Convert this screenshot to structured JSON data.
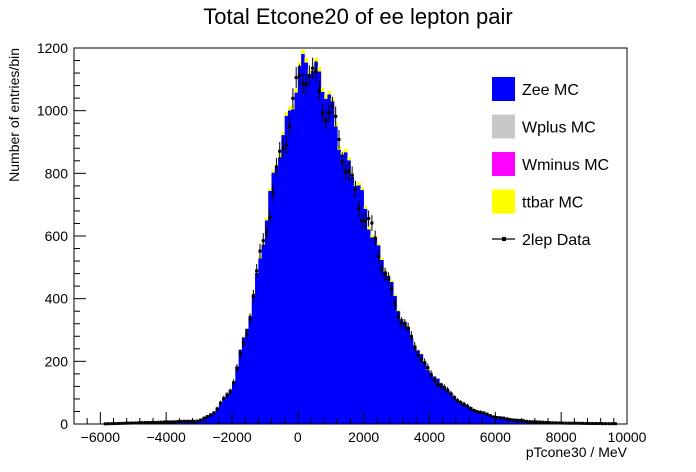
{
  "chart_data": {
    "type": "bar",
    "title": "Total Etcone20 of ee lepton pair",
    "xlabel": "pTcone30 / MeV",
    "ylabel": "Number of entries/bin",
    "xlim": [
      -6800,
      10000
    ],
    "ylim": [
      0,
      1200
    ],
    "x_ticks": [
      -6000,
      -4000,
      -2000,
      0,
      2000,
      4000,
      6000,
      8000,
      10000
    ],
    "y_ticks": [
      0,
      200,
      400,
      600,
      800,
      1000,
      1200
    ],
    "x_tick_labels": [
      "−6000",
      "−4000",
      "−2000",
      "0",
      "2000",
      "4000",
      "6000",
      "8000",
      "10000"
    ],
    "y_tick_labels": [
      "0",
      "200",
      "400",
      "600",
      "800",
      "1000",
      "1200"
    ],
    "bin_width": 100,
    "legend": {
      "position": "top-right",
      "entries": [
        {
          "name": "Zee MC",
          "marker": "box",
          "color": "#0000ff"
        },
        {
          "name": "Wplus MC",
          "marker": "box",
          "color": "#c8c8c8"
        },
        {
          "name": "Wminus MC",
          "marker": "box",
          "color": "#ff00ff"
        },
        {
          "name": "ttbar MC",
          "marker": "box",
          "color": "#ffff00"
        },
        {
          "name": "2lep Data",
          "marker": "point-errorbar",
          "color": "#000000"
        }
      ]
    },
    "histogram_peak": {
      "x": 300,
      "Zee MC": 1180,
      "ttbar MC": 20,
      "2lep Data": 1120
    },
    "histogram_profile": [
      {
        "x": -6000,
        "y": 0
      },
      {
        "x": -3000,
        "y": 10
      },
      {
        "x": -2500,
        "y": 40
      },
      {
        "x": -2000,
        "y": 120
      },
      {
        "x": -1500,
        "y": 330
      },
      {
        "x": -1000,
        "y": 620
      },
      {
        "x": -500,
        "y": 920
      },
      {
        "x": 0,
        "y": 1080
      },
      {
        "x": 300,
        "y": 1180
      },
      {
        "x": 600,
        "y": 1130
      },
      {
        "x": 1000,
        "y": 1000
      },
      {
        "x": 1500,
        "y": 840
      },
      {
        "x": 2000,
        "y": 700
      },
      {
        "x": 2500,
        "y": 540
      },
      {
        "x": 3000,
        "y": 390
      },
      {
        "x": 3500,
        "y": 260
      },
      {
        "x": 4000,
        "y": 170
      },
      {
        "x": 4500,
        "y": 110
      },
      {
        "x": 5000,
        "y": 65
      },
      {
        "x": 5500,
        "y": 40
      },
      {
        "x": 6000,
        "y": 22
      },
      {
        "x": 7000,
        "y": 8
      },
      {
        "x": 8000,
        "y": 3
      },
      {
        "x": 9500,
        "y": 1
      }
    ],
    "colors": {
      "zee": "#0000ff",
      "wplus": "#c8c8c8",
      "wminus": "#ff00ff",
      "ttbar": "#ffff00",
      "data": "#000000"
    }
  }
}
